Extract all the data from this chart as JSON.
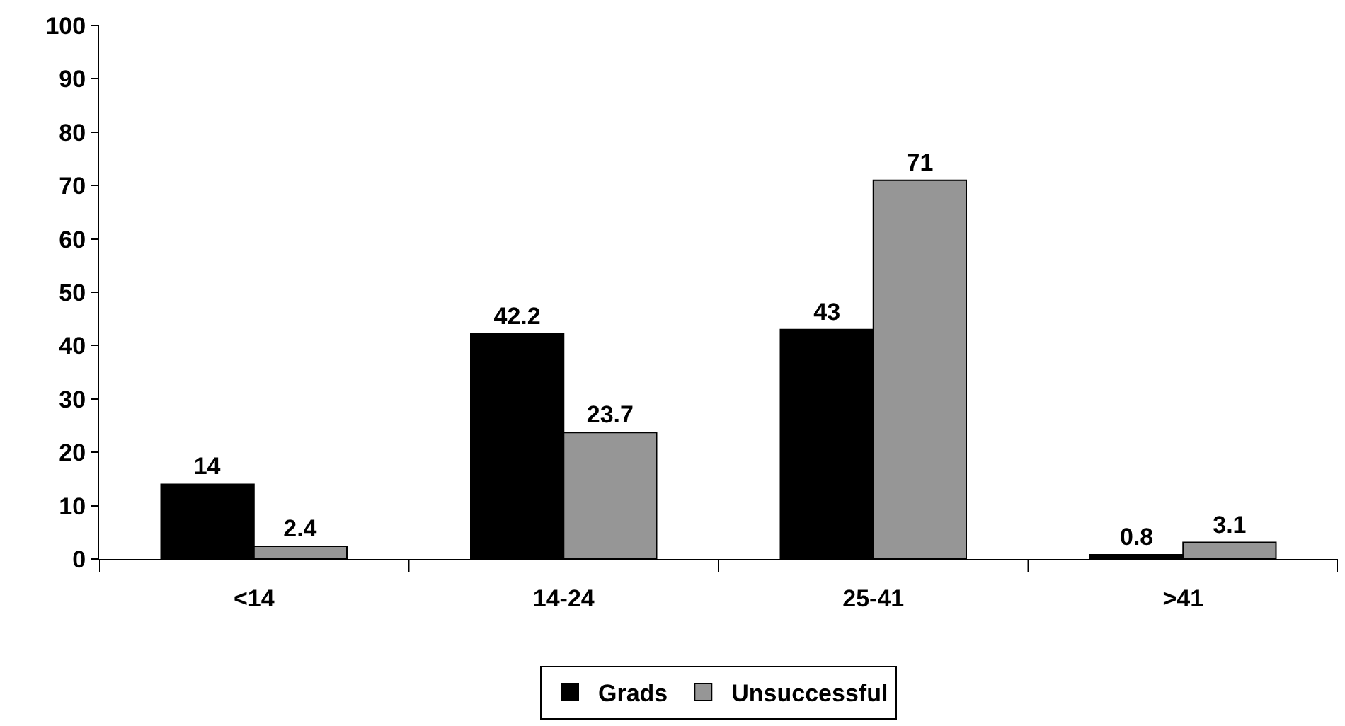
{
  "chart_data": {
    "type": "bar",
    "categories": [
      "<14",
      "14-24",
      "25-41",
      ">41"
    ],
    "series": [
      {
        "name": "Grads",
        "color": "#000000",
        "values": [
          14,
          42.2,
          43,
          0.8
        ]
      },
      {
        "name": "Unsuccessful",
        "color": "#969696",
        "values": [
          2.4,
          23.7,
          71,
          3.1
        ]
      }
    ],
    "ylim": [
      0,
      100
    ],
    "yticks": [
      0,
      10,
      20,
      30,
      40,
      50,
      60,
      70,
      80,
      90,
      100
    ],
    "data_labels": true,
    "legend": "bottom"
  }
}
